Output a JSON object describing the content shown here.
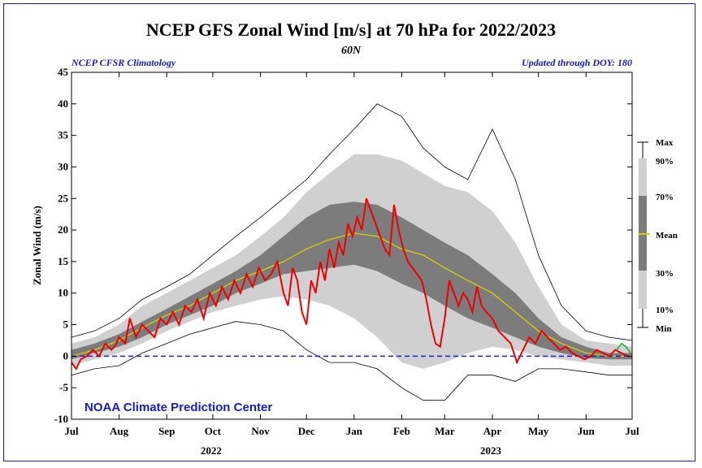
{
  "chart_data": {
    "type": "area",
    "title": "NCEP GFS Zonal Wind [m/s] at 70 hPa for 2022/2023",
    "subtitle": "60N",
    "note_left": "NCEP CFSR Climatology",
    "note_right": "Updated through DOY: 180",
    "credit": "NOAA Climate Prediction Center",
    "ylabel": "Zonal Wind (m/s)",
    "ylim": [
      -10,
      45
    ],
    "yticks": [
      -10,
      -5,
      0,
      5,
      10,
      15,
      20,
      25,
      30,
      35,
      40,
      45
    ],
    "xlim": [
      0,
      365
    ],
    "x_unit": "day since Jul 1 2022",
    "months": [
      {
        "label": "Jul",
        "day": 0
      },
      {
        "label": "Aug",
        "day": 31
      },
      {
        "label": "Sep",
        "day": 62
      },
      {
        "label": "Oct",
        "day": 92
      },
      {
        "label": "Nov",
        "day": 123
      },
      {
        "label": "Dec",
        "day": 153
      },
      {
        "label": "Jan",
        "day": 184
      },
      {
        "label": "Feb",
        "day": 215
      },
      {
        "label": "Mar",
        "day": 243
      },
      {
        "label": "Apr",
        "day": 274
      },
      {
        "label": "May",
        "day": 304
      },
      {
        "label": "Jun",
        "day": 335
      },
      {
        "label": "Jul",
        "day": 365
      }
    ],
    "years": [
      {
        "label": "2022",
        "day": 92
      },
      {
        "label": "2023",
        "day": 274
      }
    ],
    "zero_line": 0,
    "legend": {
      "max": "Max",
      "p90": "90%",
      "p70": "70%",
      "mean": "Mean",
      "p30": "30%",
      "p10": "10%",
      "min": "Min"
    },
    "colors": {
      "outer_band": "#d0d0d0",
      "inner_band": "#7c7c7c",
      "mean": "#d8d000",
      "observed": "#ee0000",
      "forecast": "#22aa22",
      "zero": "#1f1fdd",
      "extreme": "#000000",
      "frame": "#1f1fb8"
    },
    "climatology": {
      "x": [
        0,
        15,
        31,
        46,
        62,
        77,
        92,
        107,
        123,
        138,
        153,
        168,
        184,
        199,
        215,
        229,
        243,
        258,
        274,
        289,
        304,
        319,
        335,
        350,
        365
      ],
      "max": [
        3,
        4,
        6,
        9,
        11,
        13,
        16,
        19,
        22,
        25,
        28,
        32,
        36,
        40,
        38,
        33,
        30,
        28,
        36,
        28,
        16,
        8,
        4,
        3,
        2.5
      ],
      "p90": [
        2,
        3,
        5,
        8,
        10,
        12,
        14,
        16,
        19,
        22,
        26,
        29,
        32,
        32,
        31,
        29,
        27,
        26,
        23,
        18,
        11,
        5,
        2.5,
        2,
        1.5
      ],
      "p70": [
        1,
        2,
        3.5,
        5.5,
        7.5,
        9.5,
        11.5,
        13.5,
        16,
        19,
        22,
        24,
        24.5,
        24,
        22,
        20,
        18,
        16,
        13,
        10,
        6,
        3,
        1.5,
        0.5,
        0.5
      ],
      "mean": [
        0,
        1,
        2.5,
        4.5,
        6.5,
        8,
        10,
        12,
        13.5,
        15,
        17,
        18.5,
        19.5,
        19,
        17,
        16,
        14,
        12,
        10,
        7,
        4,
        2,
        0.5,
        0,
        0
      ],
      "p30": [
        -0.5,
        0.5,
        1.5,
        3,
        5,
        6.5,
        8,
        10,
        11.5,
        13,
        13.5,
        14,
        14.5,
        13.5,
        11.5,
        10,
        8,
        6,
        4.5,
        3,
        1.5,
        0.5,
        -0.3,
        -0.5,
        -0.5
      ],
      "p10": [
        -1.5,
        -0.5,
        0.5,
        2,
        4,
        5.5,
        7,
        8,
        9,
        9.5,
        9,
        8,
        6,
        3,
        -1,
        -2,
        -1,
        0.5,
        1.5,
        1,
        0,
        -0.5,
        -1,
        -1.5,
        -1.5
      ],
      "min": [
        -3,
        -2,
        -1.5,
        0.5,
        2,
        3.5,
        4.5,
        5.5,
        5,
        4,
        1,
        -1,
        -1,
        -2,
        -5,
        -7,
        -7,
        -3,
        -3,
        -4,
        -2,
        -2,
        -2.5,
        -3,
        -3
      ]
    },
    "series": [
      {
        "name": "2022/2023",
        "x": [
          0,
          3,
          6,
          10,
          14,
          18,
          22,
          26,
          28,
          31,
          35,
          38,
          42,
          46,
          50,
          54,
          58,
          62,
          66,
          70,
          74,
          78,
          82,
          86,
          90,
          94,
          98,
          102,
          106,
          110,
          114,
          118,
          122,
          126,
          130,
          134,
          138,
          141,
          144,
          147,
          150,
          153,
          156,
          159,
          162,
          165,
          168,
          171,
          174,
          177,
          180,
          183,
          186,
          189,
          192,
          195,
          198,
          201,
          204,
          207,
          210,
          213,
          216,
          219,
          222,
          225,
          228,
          231,
          234,
          237,
          240,
          243,
          246,
          249,
          252,
          255,
          258,
          261,
          264,
          267,
          270,
          274,
          278,
          282,
          286,
          290,
          294,
          298,
          302,
          306,
          310,
          314,
          318,
          322,
          326,
          330,
          334,
          338,
          342,
          346,
          350,
          354,
          358,
          362
        ],
        "y": [
          -1,
          -2,
          -0.5,
          0,
          1,
          0,
          2,
          1,
          1.5,
          3,
          2,
          6,
          3,
          5,
          4,
          3,
          6,
          5,
          7,
          5,
          8,
          7,
          9,
          6,
          10,
          8,
          11,
          9,
          12,
          10,
          13,
          11,
          14,
          12,
          13,
          15,
          10,
          8,
          14,
          12,
          7,
          5,
          12,
          10,
          15,
          12,
          17,
          14,
          18,
          16,
          21,
          19,
          22,
          20,
          25,
          23,
          21,
          19,
          17,
          16,
          24,
          20,
          17,
          15,
          14,
          13,
          12,
          9,
          5,
          2,
          1.5,
          6,
          12,
          10,
          8,
          10,
          9,
          7,
          11,
          8,
          7,
          6,
          4,
          3,
          2,
          -1,
          1,
          3,
          2,
          4,
          3,
          2,
          1,
          1.5,
          0.5,
          0,
          -0.5,
          0,
          1,
          0.5,
          0,
          1,
          0.5,
          0
        ]
      },
      {
        "name": "forecast",
        "x": [
          355,
          358,
          361,
          364
        ],
        "y": [
          1,
          2,
          1.5,
          0.5
        ]
      }
    ]
  }
}
